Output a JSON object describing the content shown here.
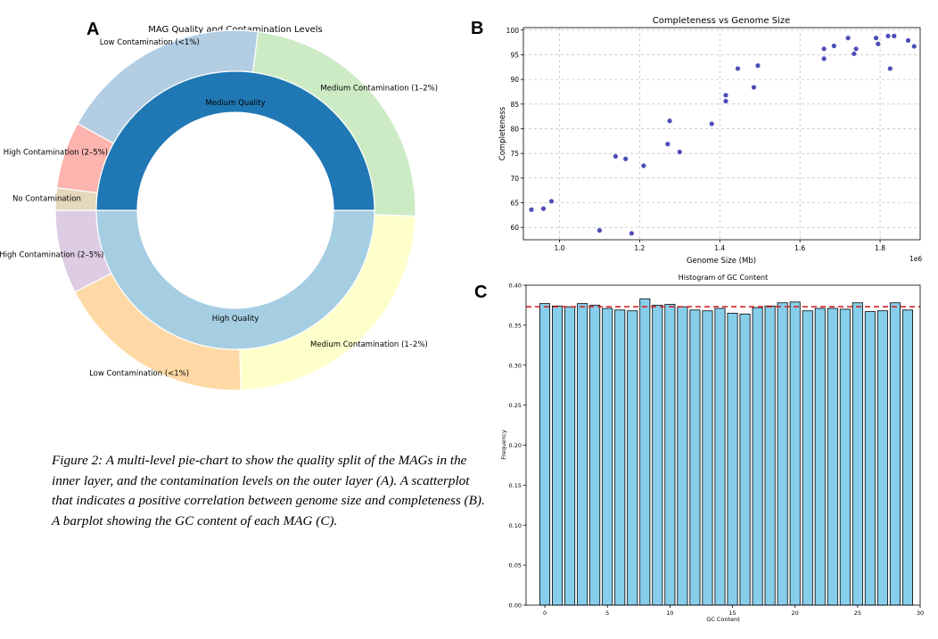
{
  "figure": {
    "panel_a_letter": "A",
    "panel_b_letter": "B",
    "panel_c_letter": "C",
    "caption": "Figure 2: A multi-level pie-chart to show the quality split of the MAGs in the inner layer, and the contamination levels on the outer layer (A). A scatterplot that indicates a positive correlation between genome size and completeness (B). A barplot showing the GC content of each MAG (C)."
  },
  "chart_data": [
    {
      "type": "pie",
      "title": "MAG Quality and Contamination Levels",
      "inner": {
        "labels": [
          "High Quality",
          "Medium Quality"
        ],
        "values": [
          50,
          50
        ],
        "colors": [
          "#a6cee3",
          "#1f78b4"
        ]
      },
      "outer": {
        "labels": [
          "High Contamination (2–5%)",
          "Low Contamination (<1%)",
          "Medium Contamination (1–2%)",
          "Medium Contamination (1–2%)",
          "Low Contamination (<1%)",
          "High Contamination (2–5%)",
          "No Contamination"
        ],
        "values": [
          7.5,
          18,
          24,
          23.5,
          19,
          6,
          2
        ],
        "colors": [
          "#decbe4",
          "#fed9a6",
          "#ffffcc",
          "#ccebc5",
          "#b3cde3",
          "#fbb4ae",
          "#e5d8bd"
        ]
      }
    },
    {
      "type": "scatter",
      "title": "Completeness vs Genome Size",
      "xlabel": "Genome Size (Mb)",
      "ylabel": "Completeness",
      "offset_label": "1e6",
      "xlim": [
        0.91,
        1.9
      ],
      "ylim": [
        57.5,
        100.5
      ],
      "xticks": [
        1.0,
        1.2,
        1.4,
        1.6,
        1.8
      ],
      "xtick_labels": [
        "1.0",
        "1.2",
        "1.4",
        "1.6",
        "1.8"
      ],
      "yticks": [
        60,
        65,
        70,
        75,
        80,
        85,
        90,
        95,
        100
      ],
      "grid": true,
      "x": [
        0.93,
        0.96,
        0.98,
        1.1,
        1.14,
        1.165,
        1.18,
        1.21,
        1.27,
        1.275,
        1.3,
        1.38,
        1.415,
        1.415,
        1.445,
        1.485,
        1.495,
        1.66,
        1.66,
        1.685,
        1.72,
        1.735,
        1.74,
        1.79,
        1.795,
        1.82,
        1.825,
        1.835,
        1.87,
        1.885
      ],
      "y": [
        63.6,
        63.8,
        65.3,
        59.4,
        74.4,
        73.9,
        58.8,
        72.5,
        76.9,
        81.6,
        75.3,
        81.0,
        85.6,
        86.8,
        92.2,
        88.4,
        92.8,
        94.2,
        96.2,
        96.8,
        98.4,
        95.2,
        96.2,
        98.4,
        97.2,
        98.8,
        92.2,
        98.8,
        97.9,
        96.7
      ],
      "color": "#3a3ab0"
    },
    {
      "type": "bar",
      "title": "Histogram of GC Content",
      "xlabel": "GC Content",
      "ylabel": "Frequency",
      "xlim": [
        -1.5,
        30
      ],
      "ylim": [
        0,
        0.4
      ],
      "xticks": [
        0,
        5,
        10,
        15,
        20,
        25,
        30
      ],
      "yticks": [
        0.0,
        0.05,
        0.1,
        0.15,
        0.2,
        0.25,
        0.3,
        0.35,
        0.4
      ],
      "ytick_labels": [
        "0.00",
        "0.05",
        "0.10",
        "0.15",
        "0.20",
        "0.25",
        "0.30",
        "0.35",
        "0.40"
      ],
      "categories": [
        0,
        1,
        2,
        3,
        4,
        5,
        6,
        7,
        8,
        9,
        10,
        11,
        12,
        13,
        14,
        15,
        16,
        17,
        18,
        19,
        20,
        21,
        22,
        23,
        24,
        25,
        26,
        27,
        28,
        29
      ],
      "values": [
        0.377,
        0.374,
        0.373,
        0.377,
        0.375,
        0.371,
        0.369,
        0.368,
        0.383,
        0.375,
        0.376,
        0.373,
        0.369,
        0.368,
        0.371,
        0.365,
        0.364,
        0.372,
        0.374,
        0.378,
        0.379,
        0.368,
        0.371,
        0.371,
        0.37,
        0.378,
        0.367,
        0.368,
        0.378,
        0.369
      ],
      "mean_line": 0.373,
      "bar_color": "#87ceeb",
      "mean_color": "#d62728"
    }
  ]
}
